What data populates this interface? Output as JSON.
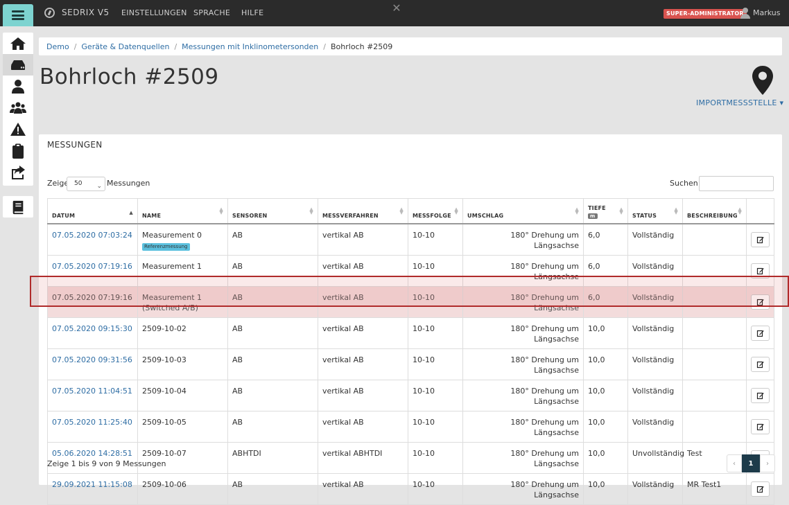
{
  "topbar": {
    "brand": "SEDRIX V5",
    "nav": [
      "EINSTELLUNGEN",
      "SPRACHE",
      "HILFE"
    ],
    "close_glyph": "✕",
    "role_badge": "SUPER-ADMINISTRATOR",
    "user_name": "Markus"
  },
  "sidebar": {
    "items": [
      "home-icon",
      "devices-icon",
      "user-icon",
      "users-icon",
      "warning-icon",
      "clipboard-icon",
      "share-icon"
    ],
    "active_index": 1,
    "extra_item": "book-icon"
  },
  "breadcrumb": {
    "items": [
      "Demo",
      "Geräte & Datenquellen",
      "Messungen mit Inklinometersonden"
    ],
    "current": "Bohrloch #2509"
  },
  "page": {
    "title": "Bohrloch #2509",
    "import_link": "IMPORTMESSSTELLE ▾"
  },
  "panel": {
    "title": "MESSUNGEN",
    "show_label": "Zeige",
    "show_value": "50",
    "show_suffix": "Messungen",
    "search_label": "Suchen:",
    "search_value": ""
  },
  "table": {
    "headers": {
      "datum": "DATUM",
      "name": "NAME",
      "sensoren": "SENSOREN",
      "messverfahren": "MESSVERFAHREN",
      "messfolge": "MESSFOLGE",
      "umschlag": "UMSCHLAG",
      "tiefe": "TIEFE",
      "tiefe_unit": "m",
      "status": "STATUS",
      "beschreibung": "BESCHREIBUNG"
    },
    "rows": [
      {
        "datum": "07.05.2020 07:03:24",
        "name": "Measurement 0",
        "badge": "Referenzmessung",
        "sensoren": "AB",
        "messverfahren": "vertikal AB",
        "messfolge": "10-10",
        "umschlag": "180° Drehung um Längsachse",
        "tiefe": "6,0",
        "status": "Vollständig",
        "beschreibung": ""
      },
      {
        "datum": "07.05.2020 07:19:16",
        "name": "Measurement 1",
        "sensoren": "AB",
        "messverfahren": "vertikal AB",
        "messfolge": "10-10",
        "umschlag": "180° Drehung um Längsachse",
        "tiefe": "6,0",
        "status": "Vollständig",
        "beschreibung": ""
      },
      {
        "datum": "07.05.2020 07:19:16",
        "name": "Measurement 1",
        "name2": "(Switched A/B)",
        "sensoren": "AB",
        "messverfahren": "vertikal AB",
        "messfolge": "10-10",
        "umschlag": "180° Drehung um Längsachse",
        "tiefe": "6,0",
        "status": "Vollständig",
        "beschreibung": ""
      },
      {
        "datum": "07.05.2020 09:15:30",
        "name": "2509-10-02",
        "sensoren": "AB",
        "messverfahren": "vertikal AB",
        "messfolge": "10-10",
        "umschlag": "180° Drehung um Längsachse",
        "tiefe": "10,0",
        "status": "Vollständig",
        "beschreibung": ""
      },
      {
        "datum": "07.05.2020 09:31:56",
        "name": "2509-10-03",
        "sensoren": "AB",
        "messverfahren": "vertikal AB",
        "messfolge": "10-10",
        "umschlag": "180° Drehung um Längsachse",
        "tiefe": "10,0",
        "status": "Vollständig",
        "beschreibung": ""
      },
      {
        "datum": "07.05.2020 11:04:51",
        "name": "2509-10-04",
        "sensoren": "AB",
        "messverfahren": "vertikal AB",
        "messfolge": "10-10",
        "umschlag": "180° Drehung um Längsachse",
        "tiefe": "10,0",
        "status": "Vollständig",
        "beschreibung": ""
      },
      {
        "datum": "07.05.2020 11:25:40",
        "name": "2509-10-05",
        "sensoren": "AB",
        "messverfahren": "vertikal AB",
        "messfolge": "10-10",
        "umschlag": "180° Drehung um Längsachse",
        "tiefe": "10,0",
        "status": "Vollständig",
        "beschreibung": ""
      },
      {
        "datum": "05.06.2020 14:28:51",
        "name": "2509-10-07",
        "sensoren": "ABHTDI",
        "messverfahren": "vertikal ABHTDI",
        "messfolge": "10-10",
        "umschlag": "180° Drehung um Längsachse",
        "tiefe": "10,0",
        "status": "Unvollständig",
        "beschreibung": "Test"
      },
      {
        "datum": "29.09.2021 11:15:08",
        "name": "2509-10-06",
        "sensoren": "AB",
        "messverfahren": "vertikal AB",
        "messfolge": "10-10",
        "umschlag": "180° Drehung um Längsachse",
        "tiefe": "10,0",
        "status": "Vollständig",
        "beschreibung": "MR Test1"
      }
    ],
    "highlighted_row": 2
  },
  "footer": {
    "info": "Zeige 1 bis 9 von 9 Messungen",
    "prev": "‹",
    "page": "1",
    "next": "›"
  }
}
